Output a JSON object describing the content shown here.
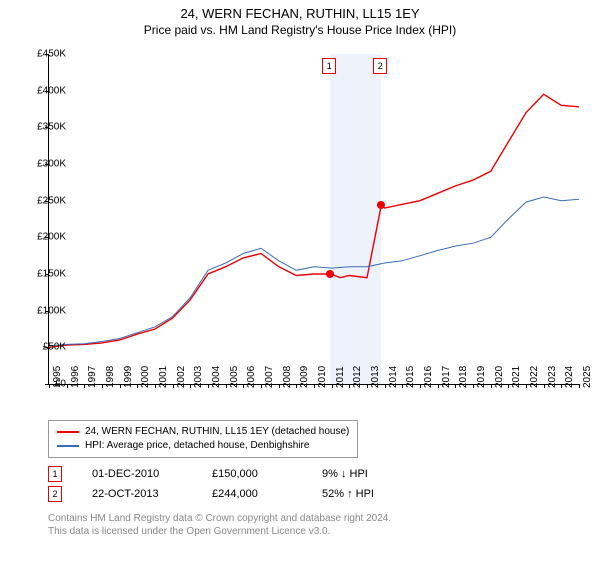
{
  "title": "24, WERN FECHAN, RUTHIN, LL15 1EY",
  "subtitle": "Price paid vs. HM Land Registry's House Price Index (HPI)",
  "chart": {
    "type": "line",
    "xlim": [
      1995,
      2025
    ],
    "ylim": [
      0,
      450000
    ],
    "ytick_step": 50000,
    "ylabels": [
      "£0",
      "£50K",
      "£100K",
      "£150K",
      "£200K",
      "£250K",
      "£300K",
      "£350K",
      "£400K",
      "£450K"
    ],
    "xlabels": [
      "1995",
      "1996",
      "1997",
      "1998",
      "1999",
      "2000",
      "2001",
      "2002",
      "2003",
      "2004",
      "2005",
      "2006",
      "2007",
      "2008",
      "2009",
      "2010",
      "2011",
      "2012",
      "2013",
      "2014",
      "2015",
      "2016",
      "2017",
      "2018",
      "2019",
      "2020",
      "2021",
      "2022",
      "2023",
      "2024",
      "2025"
    ],
    "background_color": "#ffffff",
    "band_color": "#eef2fb",
    "band_start": 2010.92,
    "band_end": 2013.81,
    "series_red": {
      "color": "#ee0000",
      "width": 1.4,
      "points": [
        [
          1995,
          50000
        ],
        [
          1996,
          53000
        ],
        [
          1997,
          54000
        ],
        [
          1998,
          56000
        ],
        [
          1999,
          60000
        ],
        [
          2000,
          68000
        ],
        [
          2001,
          75000
        ],
        [
          2002,
          90000
        ],
        [
          2003,
          115000
        ],
        [
          2004,
          150000
        ],
        [
          2005,
          160000
        ],
        [
          2006,
          172000
        ],
        [
          2007,
          178000
        ],
        [
          2008,
          160000
        ],
        [
          2009,
          148000
        ],
        [
          2010,
          150000
        ],
        [
          2010.92,
          150000
        ],
        [
          2011.5,
          145000
        ],
        [
          2012,
          148000
        ],
        [
          2013,
          145000
        ],
        [
          2013.81,
          244000
        ],
        [
          2014,
          240000
        ],
        [
          2015,
          245000
        ],
        [
          2016,
          250000
        ],
        [
          2017,
          260000
        ],
        [
          2018,
          270000
        ],
        [
          2019,
          278000
        ],
        [
          2020,
          290000
        ],
        [
          2021,
          330000
        ],
        [
          2022,
          370000
        ],
        [
          2023,
          395000
        ],
        [
          2024,
          380000
        ],
        [
          2025,
          378000
        ]
      ]
    },
    "series_blue": {
      "color": "#3a6db8",
      "width": 1,
      "points": [
        [
          1995,
          52000
        ],
        [
          1996,
          54000
        ],
        [
          1997,
          55000
        ],
        [
          1998,
          58000
        ],
        [
          1999,
          62000
        ],
        [
          2000,
          70000
        ],
        [
          2001,
          78000
        ],
        [
          2002,
          92000
        ],
        [
          2003,
          118000
        ],
        [
          2004,
          155000
        ],
        [
          2005,
          165000
        ],
        [
          2006,
          178000
        ],
        [
          2007,
          185000
        ],
        [
          2008,
          168000
        ],
        [
          2009,
          155000
        ],
        [
          2010,
          160000
        ],
        [
          2011,
          158000
        ],
        [
          2012,
          160000
        ],
        [
          2013,
          160000
        ],
        [
          2014,
          165000
        ],
        [
          2015,
          168000
        ],
        [
          2016,
          175000
        ],
        [
          2017,
          182000
        ],
        [
          2018,
          188000
        ],
        [
          2019,
          192000
        ],
        [
          2020,
          200000
        ],
        [
          2021,
          225000
        ],
        [
          2022,
          248000
        ],
        [
          2023,
          255000
        ],
        [
          2024,
          250000
        ],
        [
          2025,
          252000
        ]
      ]
    },
    "sale_points": [
      {
        "n": "1",
        "x": 2010.92,
        "y": 150000
      },
      {
        "n": "2",
        "x": 2013.81,
        "y": 244000
      }
    ]
  },
  "legend": {
    "red_label": "24, WERN FECHAN, RUTHIN, LL15 1EY (detached house)",
    "blue_label": "HPI: Average price, detached house, Denbighshire"
  },
  "sales": [
    {
      "n": "1",
      "date": "01-DEC-2010",
      "price": "£150,000",
      "change": "9% ↓ HPI"
    },
    {
      "n": "2",
      "date": "22-OCT-2013",
      "price": "£244,000",
      "change": "52% ↑ HPI"
    }
  ],
  "footer_line1": "Contains HM Land Registry data © Crown copyright and database right 2024.",
  "footer_line2": "This data is licensed under the Open Government Licence v3.0."
}
